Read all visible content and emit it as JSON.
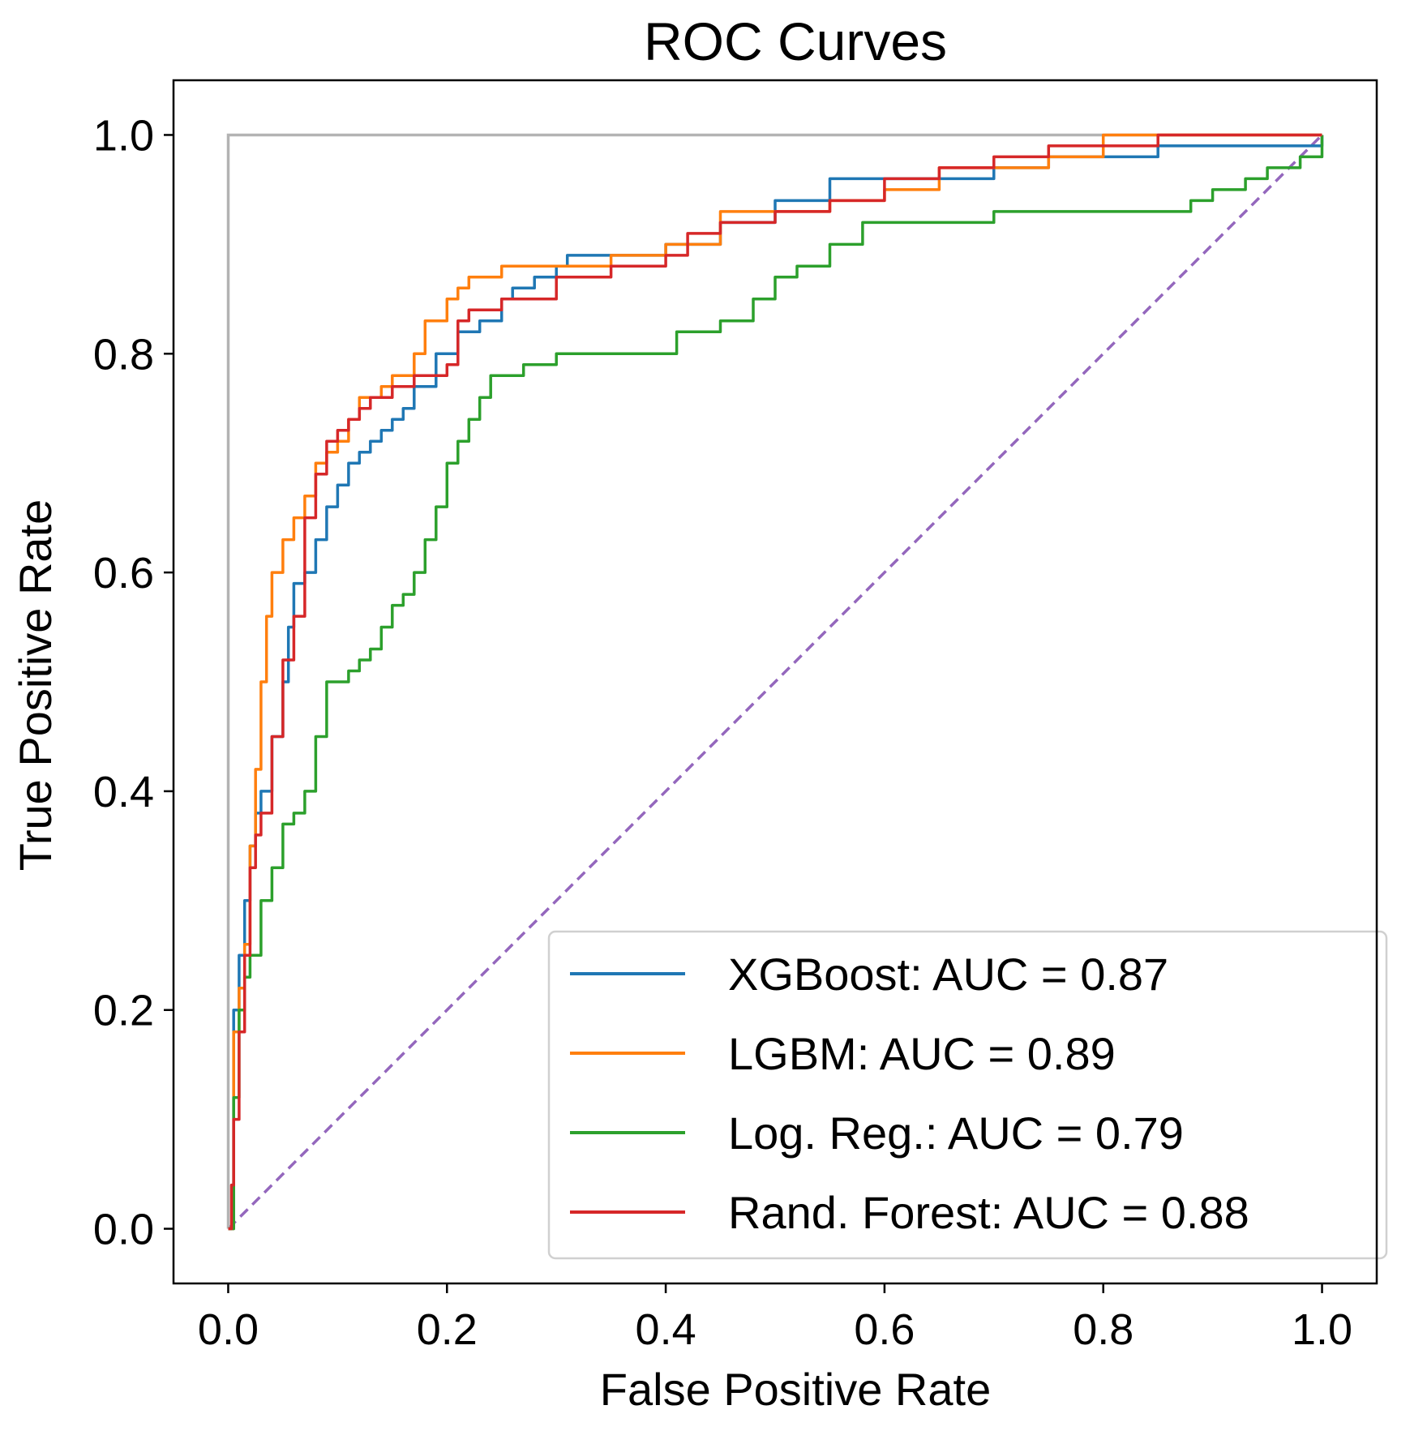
{
  "chart_data": {
    "type": "line",
    "title": "ROC Curves",
    "xlabel": "False Positive Rate",
    "ylabel": "True Positive Rate",
    "xlim": [
      -0.05,
      1.05
    ],
    "ylim": [
      -0.05,
      1.05
    ],
    "xticks": [
      0.0,
      0.2,
      0.4,
      0.6,
      0.8,
      1.0
    ],
    "yticks": [
      0.0,
      0.2,
      0.4,
      0.6,
      0.8,
      1.0
    ],
    "tick_labels": [
      "0.0",
      "0.2",
      "0.4",
      "0.6",
      "0.8",
      "1.0"
    ],
    "grid": false,
    "legend_position": "lower-right",
    "series": [
      {
        "name": "XGBoost: AUC = 0.87",
        "color": "#1f77b4",
        "x": [
          0,
          0.005,
          0.01,
          0.015,
          0.02,
          0.025,
          0.03,
          0.04,
          0.05,
          0.055,
          0.06,
          0.065,
          0.07,
          0.08,
          0.09,
          0.1,
          0.11,
          0.12,
          0.13,
          0.14,
          0.15,
          0.16,
          0.17,
          0.19,
          0.2,
          0.21,
          0.23,
          0.25,
          0.26,
          0.28,
          0.3,
          0.31,
          0.35,
          0.4,
          0.45,
          0.5,
          0.55,
          0.6,
          0.65,
          0.7,
          0.75,
          0.8,
          0.85,
          0.9,
          0.96,
          1.0
        ],
        "y": [
          0,
          0.2,
          0.25,
          0.3,
          0.35,
          0.38,
          0.4,
          0.45,
          0.5,
          0.55,
          0.59,
          0.59,
          0.6,
          0.63,
          0.66,
          0.68,
          0.7,
          0.71,
          0.72,
          0.73,
          0.74,
          0.75,
          0.77,
          0.8,
          0.8,
          0.82,
          0.83,
          0.85,
          0.86,
          0.87,
          0.88,
          0.89,
          0.89,
          0.9,
          0.92,
          0.94,
          0.96,
          0.96,
          0.96,
          0.97,
          0.98,
          0.98,
          0.99,
          0.99,
          0.99,
          1.0
        ]
      },
      {
        "name": "LGBM: AUC = 0.89",
        "color": "#ff7f0e",
        "x": [
          0,
          0.005,
          0.01,
          0.015,
          0.02,
          0.025,
          0.03,
          0.035,
          0.04,
          0.05,
          0.06,
          0.07,
          0.08,
          0.09,
          0.1,
          0.11,
          0.12,
          0.14,
          0.15,
          0.17,
          0.18,
          0.2,
          0.21,
          0.22,
          0.25,
          0.3,
          0.35,
          0.4,
          0.45,
          0.5,
          0.55,
          0.6,
          0.65,
          0.7,
          0.75,
          0.8,
          1.0
        ],
        "y": [
          0,
          0.18,
          0.22,
          0.26,
          0.35,
          0.42,
          0.5,
          0.56,
          0.6,
          0.63,
          0.65,
          0.67,
          0.7,
          0.71,
          0.72,
          0.74,
          0.76,
          0.77,
          0.78,
          0.8,
          0.83,
          0.85,
          0.86,
          0.87,
          0.88,
          0.88,
          0.89,
          0.9,
          0.93,
          0.93,
          0.94,
          0.95,
          0.97,
          0.97,
          0.98,
          1.0,
          1.0
        ]
      },
      {
        "name": "Log. Reg.: AUC = 0.79",
        "color": "#2ca02c",
        "x": [
          0,
          0.005,
          0.01,
          0.015,
          0.02,
          0.03,
          0.04,
          0.05,
          0.06,
          0.07,
          0.08,
          0.09,
          0.1,
          0.11,
          0.12,
          0.13,
          0.14,
          0.15,
          0.16,
          0.17,
          0.18,
          0.19,
          0.2,
          0.21,
          0.22,
          0.23,
          0.24,
          0.25,
          0.26,
          0.27,
          0.3,
          0.32,
          0.35,
          0.4,
          0.41,
          0.45,
          0.48,
          0.5,
          0.52,
          0.55,
          0.58,
          0.6,
          0.65,
          0.7,
          0.75,
          0.8,
          0.85,
          0.88,
          0.9,
          0.93,
          0.95,
          0.98,
          1.0
        ],
        "y": [
          0,
          0.12,
          0.2,
          0.23,
          0.25,
          0.3,
          0.33,
          0.37,
          0.38,
          0.4,
          0.45,
          0.5,
          0.5,
          0.51,
          0.52,
          0.53,
          0.55,
          0.57,
          0.58,
          0.6,
          0.63,
          0.66,
          0.7,
          0.72,
          0.74,
          0.76,
          0.78,
          0.78,
          0.78,
          0.79,
          0.8,
          0.8,
          0.8,
          0.8,
          0.82,
          0.83,
          0.85,
          0.87,
          0.88,
          0.9,
          0.92,
          0.92,
          0.92,
          0.93,
          0.93,
          0.93,
          0.93,
          0.94,
          0.95,
          0.96,
          0.97,
          0.98,
          1.0
        ]
      },
      {
        "name": "Rand. Forest: AUC = 0.88",
        "color": "#d62728",
        "x": [
          0,
          0.003,
          0.005,
          0.01,
          0.015,
          0.02,
          0.025,
          0.03,
          0.04,
          0.05,
          0.06,
          0.07,
          0.08,
          0.09,
          0.1,
          0.11,
          0.12,
          0.13,
          0.15,
          0.17,
          0.2,
          0.21,
          0.22,
          0.25,
          0.3,
          0.35,
          0.4,
          0.42,
          0.45,
          0.5,
          0.55,
          0.6,
          0.65,
          0.7,
          0.75,
          0.8,
          0.85,
          0.9,
          1.0
        ],
        "y": [
          0,
          0.04,
          0.1,
          0.18,
          0.25,
          0.33,
          0.36,
          0.38,
          0.45,
          0.52,
          0.56,
          0.65,
          0.69,
          0.72,
          0.73,
          0.74,
          0.75,
          0.76,
          0.77,
          0.78,
          0.79,
          0.83,
          0.84,
          0.85,
          0.87,
          0.88,
          0.89,
          0.91,
          0.92,
          0.93,
          0.94,
          0.96,
          0.97,
          0.98,
          0.99,
          0.99,
          1.0,
          1.0,
          1.0
        ]
      }
    ],
    "reference_lines": [
      {
        "label": "chance",
        "color": "#9467bd",
        "style": "dashed",
        "x": [
          0,
          1
        ],
        "y": [
          0,
          1
        ]
      },
      {
        "label": "perfect",
        "color": "#b3b3b3",
        "style": "solid",
        "x": [
          0,
          0,
          1
        ],
        "y": [
          0,
          1,
          1
        ]
      }
    ]
  }
}
